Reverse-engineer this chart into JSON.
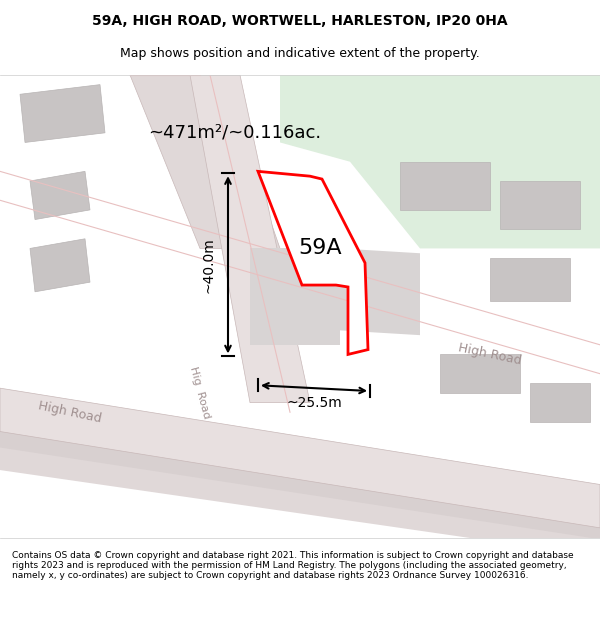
{
  "title_line1": "59A, HIGH ROAD, WORTWELL, HARLESTON, IP20 0HA",
  "title_line2": "Map shows position and indicative extent of the property.",
  "footer_text": "Contains OS data © Crown copyright and database right 2021. This information is subject to Crown copyright and database rights 2023 and is reproduced with the permission of HM Land Registry. The polygons (including the associated geometry, namely x, y co-ordinates) are subject to Crown copyright and database rights 2023 Ordnance Survey 100026316.",
  "bg_color": "#f5f0f0",
  "map_bg": "#f2eeee",
  "plot_color": "#ffffff",
  "green_area_color": "#ddeedd",
  "road_color": "#e8e0e0",
  "building_color": "#d8d4d4",
  "road_line_color": "#c8b8b8",
  "red_outline_color": "#ff0000",
  "area_label": "~471m²/~0.116ac.",
  "property_label": "59A",
  "dim_width": "~25.5m",
  "dim_height": "~40.0m",
  "high_road_label1": "High Road",
  "high_road_label2": "High Road",
  "hig_road_label3": "Hig Road"
}
